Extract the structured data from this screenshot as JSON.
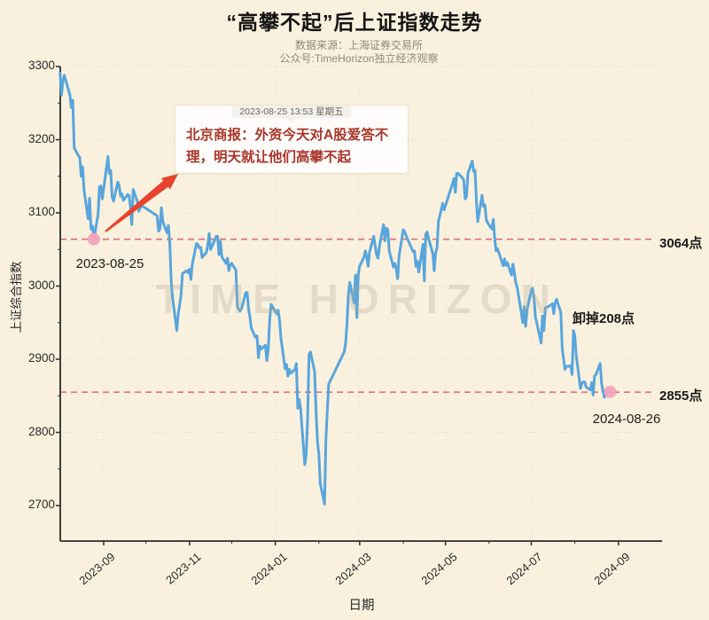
{
  "header": {
    "title": "“高攀不起”后上证指数走势",
    "source_line": "数据来源：上海证券交易所",
    "account_line": "公众号:TimeHorizon独立经济观察"
  },
  "watermark": {
    "text": "TIME HORIZON"
  },
  "annotation_card": {
    "timestamp": "2023-08-25 13:53 星期五",
    "message": "北京商报：外资今天对A股爱答不理，明天就让他们高攀不起"
  },
  "labels": {
    "start_date": "2023-08-25",
    "end_date": "2024-08-26",
    "drop": "卸掉208点",
    "high_ref": "3064点",
    "low_ref": "2855点"
  },
  "colors": {
    "background": "#f9f1dd",
    "line": "#58a5dc",
    "marker_dot": "#f2a3bb",
    "ref_dash": "#dd6b7b",
    "grid": "#d8c8a2",
    "axis": "#2b2b2b",
    "annotation_text": "#a93529",
    "arrow": "#e8432c"
  },
  "chart_data": {
    "type": "line",
    "title": "“高攀不起”后上证指数走势",
    "xlabel": "日期",
    "ylabel": "上证综合指数",
    "ylim": [
      2700,
      3300
    ],
    "y_ticks": [
      3300,
      3200,
      3100,
      3000,
      2900,
      2800,
      2700
    ],
    "y_minor_ticks": [
      3250,
      3150,
      3050,
      2950,
      2850,
      2750
    ],
    "x_ticks": [
      {
        "label": "2023-09",
        "date": "2023-09-01"
      },
      {
        "label": "2023-11",
        "date": "2023-11-01"
      },
      {
        "label": "2024-01",
        "date": "2024-01-01"
      },
      {
        "label": "2024-03",
        "date": "2024-03-01"
      },
      {
        "label": "2024-05",
        "date": "2024-05-01"
      },
      {
        "label": "2024-07",
        "date": "2024-07-01"
      },
      {
        "label": "2024-09",
        "date": "2024-09-01"
      }
    ],
    "x_minor_tick_dates": [
      "2023-10-01",
      "2023-12-01",
      "2024-02-01",
      "2024-04-01",
      "2024-06-01",
      "2024-08-01"
    ],
    "grid": true,
    "ref_lines": [
      {
        "value": 3064,
        "label": "3064点"
      },
      {
        "value": 2855,
        "label": "2855点"
      }
    ],
    "markers": [
      {
        "date": "2023-08-25",
        "value": 3064.07,
        "label": "2023-08-25"
      },
      {
        "date": "2024-08-26",
        "value": 2855.52,
        "label": "2024-08-26"
      }
    ],
    "series": [
      {
        "name": "上证综合指数",
        "points": [
          [
            "2023-08-01",
            3291
          ],
          [
            "2023-08-02",
            3261
          ],
          [
            "2023-08-03",
            3280
          ],
          [
            "2023-08-04",
            3288
          ],
          [
            "2023-08-07",
            3268
          ],
          [
            "2023-08-08",
            3261
          ],
          [
            "2023-08-09",
            3244
          ],
          [
            "2023-08-10",
            3254
          ],
          [
            "2023-08-11",
            3189
          ],
          [
            "2023-08-14",
            3178
          ],
          [
            "2023-08-15",
            3176
          ],
          [
            "2023-08-16",
            3150
          ],
          [
            "2023-08-17",
            3163
          ],
          [
            "2023-08-18",
            3131
          ],
          [
            "2023-08-21",
            3092
          ],
          [
            "2023-08-22",
            3120
          ],
          [
            "2023-08-23",
            3078
          ],
          [
            "2023-08-24",
            3082
          ],
          [
            "2023-08-25",
            3064
          ],
          [
            "2023-08-28",
            3098
          ],
          [
            "2023-08-29",
            3135
          ],
          [
            "2023-08-30",
            3137
          ],
          [
            "2023-08-31",
            3119
          ],
          [
            "2023-09-01",
            3133
          ],
          [
            "2023-09-04",
            3177
          ],
          [
            "2023-09-05",
            3154
          ],
          [
            "2023-09-06",
            3158
          ],
          [
            "2023-09-07",
            3122
          ],
          [
            "2023-09-08",
            3116
          ],
          [
            "2023-09-11",
            3142
          ],
          [
            "2023-09-12",
            3137
          ],
          [
            "2023-09-13",
            3123
          ],
          [
            "2023-09-14",
            3126
          ],
          [
            "2023-09-15",
            3117
          ],
          [
            "2023-09-18",
            3125
          ],
          [
            "2023-09-19",
            3124
          ],
          [
            "2023-09-20",
            3108
          ],
          [
            "2023-09-21",
            3084
          ],
          [
            "2023-09-22",
            3132
          ],
          [
            "2023-09-25",
            3115
          ],
          [
            "2023-09-26",
            3102
          ],
          [
            "2023-09-27",
            3107
          ],
          [
            "2023-09-28",
            3110
          ],
          [
            "2023-10-09",
            3096
          ],
          [
            "2023-10-10",
            3075
          ],
          [
            "2023-10-11",
            3078
          ],
          [
            "2023-10-12",
            3107
          ],
          [
            "2023-10-13",
            3088
          ],
          [
            "2023-10-16",
            3073
          ],
          [
            "2023-10-17",
            3083
          ],
          [
            "2023-10-18",
            3058
          ],
          [
            "2023-10-19",
            3005
          ],
          [
            "2023-10-20",
            2983
          ],
          [
            "2023-10-23",
            2939
          ],
          [
            "2023-10-24",
            2962
          ],
          [
            "2023-10-25",
            2974
          ],
          [
            "2023-10-26",
            2988
          ],
          [
            "2023-10-27",
            3017
          ],
          [
            "2023-10-30",
            3021
          ],
          [
            "2023-10-31",
            3018
          ],
          [
            "2023-11-01",
            3023
          ],
          [
            "2023-11-02",
            3009
          ],
          [
            "2023-11-03",
            3030
          ],
          [
            "2023-11-06",
            3058
          ],
          [
            "2023-11-07",
            3057
          ],
          [
            "2023-11-08",
            3052
          ],
          [
            "2023-11-09",
            3053
          ],
          [
            "2023-11-10",
            3039
          ],
          [
            "2023-11-13",
            3046
          ],
          [
            "2023-11-14",
            3056
          ],
          [
            "2023-11-15",
            3072
          ],
          [
            "2023-11-16",
            3050
          ],
          [
            "2023-11-17",
            3054
          ],
          [
            "2023-11-20",
            3068
          ],
          [
            "2023-11-21",
            3068
          ],
          [
            "2023-11-22",
            3043
          ],
          [
            "2023-11-23",
            3061
          ],
          [
            "2023-11-24",
            3040
          ],
          [
            "2023-11-27",
            3031
          ],
          [
            "2023-11-28",
            3038
          ],
          [
            "2023-11-29",
            3021
          ],
          [
            "2023-11-30",
            3029
          ],
          [
            "2023-12-01",
            3031
          ],
          [
            "2023-12-04",
            3022
          ],
          [
            "2023-12-05",
            2972
          ],
          [
            "2023-12-06",
            2968
          ],
          [
            "2023-12-07",
            2966
          ],
          [
            "2023-12-08",
            2969
          ],
          [
            "2023-12-11",
            2991
          ],
          [
            "2023-12-12",
            2991
          ],
          [
            "2023-12-13",
            2968
          ],
          [
            "2023-12-14",
            2958
          ],
          [
            "2023-12-15",
            2942
          ],
          [
            "2023-12-18",
            2930
          ],
          [
            "2023-12-19",
            2932
          ],
          [
            "2023-12-20",
            2902
          ],
          [
            "2023-12-21",
            2918
          ],
          [
            "2023-12-22",
            2914
          ],
          [
            "2023-12-25",
            2919
          ],
          [
            "2023-12-26",
            2898
          ],
          [
            "2023-12-27",
            2914
          ],
          [
            "2023-12-28",
            2954
          ],
          [
            "2023-12-29",
            2975
          ],
          [
            "2024-01-02",
            2962
          ],
          [
            "2024-01-03",
            2967
          ],
          [
            "2024-01-04",
            2954
          ],
          [
            "2024-01-05",
            2929
          ],
          [
            "2024-01-08",
            2887
          ],
          [
            "2024-01-09",
            2893
          ],
          [
            "2024-01-10",
            2877
          ],
          [
            "2024-01-11",
            2886
          ],
          [
            "2024-01-12",
            2881
          ],
          [
            "2024-01-15",
            2886
          ],
          [
            "2024-01-16",
            2894
          ],
          [
            "2024-01-17",
            2833
          ],
          [
            "2024-01-18",
            2845
          ],
          [
            "2024-01-19",
            2832
          ],
          [
            "2024-01-22",
            2756
          ],
          [
            "2024-01-23",
            2770
          ],
          [
            "2024-01-24",
            2820
          ],
          [
            "2024-01-25",
            2906
          ],
          [
            "2024-01-26",
            2910
          ],
          [
            "2024-01-29",
            2883
          ],
          [
            "2024-01-30",
            2830
          ],
          [
            "2024-01-31",
            2788
          ],
          [
            "2024-02-01",
            2770
          ],
          [
            "2024-02-02",
            2730
          ],
          [
            "2024-02-05",
            2702
          ],
          [
            "2024-02-06",
            2789
          ],
          [
            "2024-02-07",
            2829
          ],
          [
            "2024-02-08",
            2866
          ],
          [
            "2024-02-19",
            2910
          ],
          [
            "2024-02-20",
            2922
          ],
          [
            "2024-02-21",
            2950
          ],
          [
            "2024-02-22",
            2988
          ],
          [
            "2024-02-23",
            3005
          ],
          [
            "2024-02-26",
            2977
          ],
          [
            "2024-02-27",
            3015
          ],
          [
            "2024-02-28",
            2957
          ],
          [
            "2024-02-29",
            3015
          ],
          [
            "2024-03-01",
            3027
          ],
          [
            "2024-03-04",
            3039
          ],
          [
            "2024-03-05",
            3048
          ],
          [
            "2024-03-06",
            3040
          ],
          [
            "2024-03-07",
            3027
          ],
          [
            "2024-03-08",
            3046
          ],
          [
            "2024-03-11",
            3068
          ],
          [
            "2024-03-12",
            3055
          ],
          [
            "2024-03-13",
            3043
          ],
          [
            "2024-03-14",
            3038
          ],
          [
            "2024-03-15",
            3054
          ],
          [
            "2024-03-18",
            3084
          ],
          [
            "2024-03-19",
            3062
          ],
          [
            "2024-03-20",
            3079
          ],
          [
            "2024-03-21",
            3077
          ],
          [
            "2024-03-22",
            3048
          ],
          [
            "2024-03-25",
            3026
          ],
          [
            "2024-03-26",
            3031
          ],
          [
            "2024-03-27",
            3023
          ],
          [
            "2024-03-28",
            3010
          ],
          [
            "2024-03-29",
            3041
          ],
          [
            "2024-04-01",
            3077
          ],
          [
            "2024-04-02",
            3074
          ],
          [
            "2024-04-03",
            3069
          ],
          [
            "2024-04-08",
            3047
          ],
          [
            "2024-04-09",
            3048
          ],
          [
            "2024-04-10",
            3027
          ],
          [
            "2024-04-11",
            3034
          ],
          [
            "2024-04-12",
            3019
          ],
          [
            "2024-04-15",
            3057
          ],
          [
            "2024-04-16",
            3007
          ],
          [
            "2024-04-17",
            3071
          ],
          [
            "2024-04-18",
            3074
          ],
          [
            "2024-04-19",
            3065
          ],
          [
            "2024-04-22",
            3044
          ],
          [
            "2024-04-23",
            3021
          ],
          [
            "2024-04-24",
            3045
          ],
          [
            "2024-04-25",
            3052
          ],
          [
            "2024-04-26",
            3088
          ],
          [
            "2024-04-29",
            3113
          ],
          [
            "2024-04-30",
            3104
          ],
          [
            "2024-05-06",
            3140
          ],
          [
            "2024-05-07",
            3147
          ],
          [
            "2024-05-08",
            3128
          ],
          [
            "2024-05-09",
            3154
          ],
          [
            "2024-05-10",
            3154
          ],
          [
            "2024-05-13",
            3148
          ],
          [
            "2024-05-14",
            3145
          ],
          [
            "2024-05-15",
            3119
          ],
          [
            "2024-05-16",
            3122
          ],
          [
            "2024-05-17",
            3154
          ],
          [
            "2024-05-20",
            3171
          ],
          [
            "2024-05-21",
            3157
          ],
          [
            "2024-05-22",
            3158
          ],
          [
            "2024-05-23",
            3116
          ],
          [
            "2024-05-24",
            3088
          ],
          [
            "2024-05-27",
            3124
          ],
          [
            "2024-05-28",
            3109
          ],
          [
            "2024-05-29",
            3111
          ],
          [
            "2024-05-30",
            3091
          ],
          [
            "2024-05-31",
            3086
          ],
          [
            "2024-06-03",
            3078
          ],
          [
            "2024-06-04",
            3091
          ],
          [
            "2024-06-05",
            3065
          ],
          [
            "2024-06-06",
            3048
          ],
          [
            "2024-06-07",
            3051
          ],
          [
            "2024-06-11",
            3028
          ],
          [
            "2024-06-12",
            3037
          ],
          [
            "2024-06-13",
            3028
          ],
          [
            "2024-06-14",
            3032
          ],
          [
            "2024-06-17",
            3015
          ],
          [
            "2024-06-18",
            3030
          ],
          [
            "2024-06-19",
            3018
          ],
          [
            "2024-06-20",
            3005
          ],
          [
            "2024-06-21",
            2998
          ],
          [
            "2024-06-24",
            2963
          ],
          [
            "2024-06-25",
            2950
          ],
          [
            "2024-06-26",
            2972
          ],
          [
            "2024-06-27",
            2945
          ],
          [
            "2024-06-28",
            2967
          ],
          [
            "2024-07-01",
            2994
          ],
          [
            "2024-07-02",
            2997
          ],
          [
            "2024-07-03",
            2982
          ],
          [
            "2024-07-04",
            2957
          ],
          [
            "2024-07-05",
            2949
          ],
          [
            "2024-07-08",
            2922
          ],
          [
            "2024-07-09",
            2959
          ],
          [
            "2024-07-10",
            2939
          ],
          [
            "2024-07-11",
            2970
          ],
          [
            "2024-07-12",
            2971
          ],
          [
            "2024-07-15",
            2974
          ],
          [
            "2024-07-16",
            2976
          ],
          [
            "2024-07-17",
            2962
          ],
          [
            "2024-07-18",
            2977
          ],
          [
            "2024-07-19",
            2982
          ],
          [
            "2024-07-22",
            2964
          ],
          [
            "2024-07-23",
            2915
          ],
          [
            "2024-07-24",
            2901
          ],
          [
            "2024-07-25",
            2886
          ],
          [
            "2024-07-26",
            2890
          ],
          [
            "2024-07-29",
            2891
          ],
          [
            "2024-07-30",
            2879
          ],
          [
            "2024-07-31",
            2939
          ],
          [
            "2024-08-01",
            2932
          ],
          [
            "2024-08-02",
            2905
          ],
          [
            "2024-08-05",
            2860
          ],
          [
            "2024-08-06",
            2867
          ],
          [
            "2024-08-07",
            2869
          ],
          [
            "2024-08-08",
            2869
          ],
          [
            "2024-08-09",
            2862
          ],
          [
            "2024-08-12",
            2858
          ],
          [
            "2024-08-13",
            2868
          ],
          [
            "2024-08-14",
            2851
          ],
          [
            "2024-08-15",
            2877
          ],
          [
            "2024-08-16",
            2879
          ],
          [
            "2024-08-19",
            2894
          ],
          [
            "2024-08-20",
            2867
          ],
          [
            "2024-08-21",
            2856
          ],
          [
            "2024-08-22",
            2848
          ],
          [
            "2024-08-23",
            2854
          ],
          [
            "2024-08-26",
            2855.52
          ]
        ]
      }
    ]
  }
}
